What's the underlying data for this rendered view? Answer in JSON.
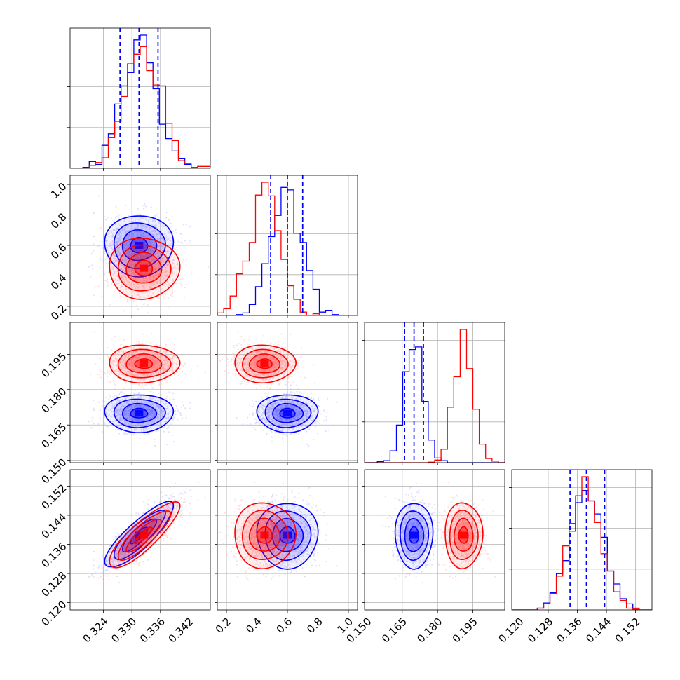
{
  "chart_data": {
    "type": "corner",
    "parameters": [
      {
        "ticks": [
          0.324,
          0.33,
          0.336,
          0.342
        ],
        "tick_labels": [
          "0.324",
          "0.330",
          "0.336",
          "0.342"
        ],
        "range": [
          0.317,
          0.3465
        ]
      },
      {
        "ticks": [
          0.2,
          0.4,
          0.6,
          0.8,
          1.0
        ],
        "tick_labels": [
          "0.2",
          "0.4",
          "0.6",
          "0.8",
          "1.0"
        ],
        "range": [
          0.14,
          1.06
        ]
      },
      {
        "ticks": [
          0.15,
          0.165,
          0.18,
          0.195
        ],
        "tick_labels": [
          "0.150",
          "0.165",
          "0.180",
          "0.195"
        ],
        "range": [
          0.149,
          0.2085
        ]
      },
      {
        "ticks": [
          0.12,
          0.128,
          0.136,
          0.144,
          0.152
        ],
        "tick_labels": [
          "0.120",
          "0.128",
          "0.136",
          "0.144",
          "0.152"
        ],
        "range": [
          0.118,
          0.1565
        ]
      }
    ],
    "series": [
      {
        "color": "#0000ff",
        "mean": [
          0.3315,
          0.6,
          0.17,
          0.1385
        ],
        "sd": [
          0.0036,
          0.1,
          0.004,
          0.0045
        ]
      },
      {
        "color": "#ff0000",
        "mean": [
          0.3325,
          0.45,
          0.191,
          0.1385
        ],
        "sd": [
          0.0037,
          0.1,
          0.004,
          0.0045
        ]
      }
    ],
    "quantile_lines": {
      "color": "#0000ff",
      "values": [
        [
          0.3275,
          0.3315,
          0.3355
        ],
        [
          0.49,
          0.6,
          0.7
        ],
        [
          0.166,
          0.17,
          0.174
        ],
        [
          0.134,
          0.1385,
          0.1435
        ]
      ]
    },
    "grid": true
  }
}
